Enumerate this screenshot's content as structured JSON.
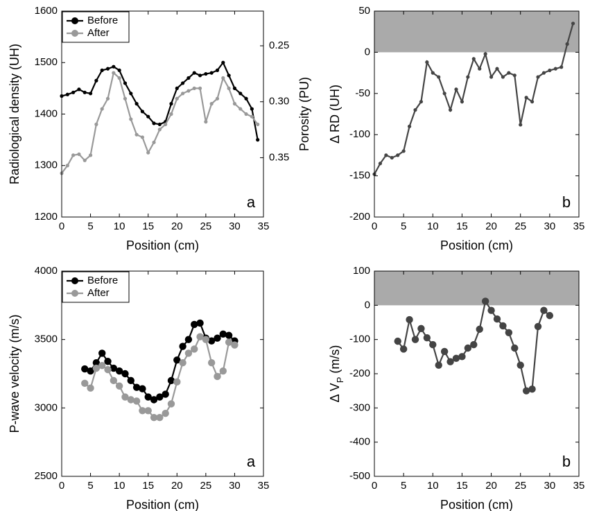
{
  "chart_data": [
    {
      "type": "line",
      "xlabel": "Position (cm)",
      "ylabel": "Radiological density (UH)",
      "y2label": "Porosity (PU)",
      "note": "a",
      "xlim": [
        0,
        35
      ],
      "xticks": [
        0,
        5,
        10,
        15,
        20,
        25,
        30,
        35
      ],
      "ylim": [
        1200,
        1600
      ],
      "yticks": [
        1200,
        1300,
        1400,
        1500,
        1600
      ],
      "y2lim": [
        0.403,
        0.219
      ],
      "y2ticks": [
        0.25,
        {
          "value": 0.3,
          "label": "0.30"
        },
        0.35
      ],
      "legend": "upper left",
      "x": [
        0,
        1,
        2,
        3,
        4,
        5,
        6,
        7,
        8,
        9,
        10,
        11,
        12,
        13,
        14,
        15,
        16,
        17,
        18,
        19,
        20,
        21,
        22,
        23,
        24,
        25,
        26,
        27,
        28,
        29,
        30,
        31,
        32,
        33,
        34
      ],
      "series": [
        {
          "name": "Before",
          "color": "#000000",
          "values": [
            1435,
            1438,
            1442,
            1448,
            1442,
            1440,
            1465,
            1485,
            1488,
            1492,
            1485,
            1460,
            1440,
            1420,
            1405,
            1395,
            1382,
            1380,
            1385,
            1420,
            1450,
            1460,
            1470,
            1480,
            1475,
            1478,
            1480,
            1485,
            1500,
            1475,
            1450,
            1440,
            1430,
            1410,
            1350
          ]
        },
        {
          "name": "After",
          "color": "#999999",
          "values": [
            1285,
            1300,
            1320,
            1322,
            1310,
            1320,
            1380,
            1410,
            1430,
            1480,
            1470,
            1430,
            1390,
            1360,
            1355,
            1325,
            1345,
            1370,
            1380,
            1400,
            1430,
            1440,
            1445,
            1450,
            1450,
            1385,
            1420,
            1430,
            1470,
            1450,
            1420,
            1410,
            1400,
            1395,
            1380
          ]
        }
      ]
    },
    {
      "type": "line",
      "xlabel": "Position (cm)",
      "ylabel": "Δ RD (UH)",
      "note": "b",
      "xlim": [
        0,
        35
      ],
      "xticks": [
        0,
        5,
        10,
        15,
        20,
        25,
        30,
        35
      ],
      "ylim": [
        -200,
        50
      ],
      "yticks": [
        -200,
        -150,
        -100,
        -50,
        0,
        50
      ],
      "shade": [
        0,
        50
      ],
      "shade_color": "#aaaaaa",
      "x": [
        0,
        1,
        2,
        3,
        4,
        5,
        6,
        7,
        8,
        9,
        10,
        11,
        12,
        13,
        14,
        15,
        16,
        17,
        18,
        19,
        20,
        21,
        22,
        23,
        24,
        25,
        26,
        27,
        28,
        29,
        30,
        31,
        32,
        33,
        34
      ],
      "series": [
        {
          "color": "#444444",
          "values": [
            -148,
            -135,
            -125,
            -128,
            -125,
            -120,
            -90,
            -70,
            -60,
            -12,
            -25,
            -30,
            -50,
            -70,
            -45,
            -60,
            -30,
            -8,
            -20,
            -2,
            -30,
            -20,
            -30,
            -25,
            -28,
            -88,
            -55,
            -60,
            -30,
            -25,
            -22,
            -20,
            -18,
            10,
            35
          ]
        }
      ]
    },
    {
      "type": "line",
      "xlabel": "Position (cm)",
      "ylabel": "P-wave velocity (m/s)",
      "note": "a",
      "xlim": [
        0,
        35
      ],
      "xticks": [
        0,
        5,
        10,
        15,
        20,
        25,
        30,
        35
      ],
      "ylim": [
        2500,
        4000
      ],
      "yticks": [
        2500,
        3000,
        3500,
        4000
      ],
      "legend": "upper left",
      "x": [
        4,
        5,
        6,
        7,
        8,
        9,
        10,
        11,
        12,
        13,
        14,
        15,
        16,
        17,
        18,
        19,
        20,
        21,
        22,
        23,
        24,
        25,
        26,
        27,
        28,
        29,
        30
      ],
      "series": [
        {
          "name": "Before",
          "color": "#000000",
          "values": [
            3285,
            3270,
            3330,
            3400,
            3340,
            3290,
            3270,
            3250,
            3200,
            3150,
            3140,
            3080,
            3060,
            3080,
            3100,
            3200,
            3350,
            3450,
            3500,
            3610,
            3620,
            3510,
            3490,
            3510,
            3540,
            3530,
            3490
          ]
        },
        {
          "name": "After",
          "color": "#999999",
          "values": [
            3180,
            3145,
            3290,
            3310,
            3280,
            3200,
            3160,
            3080,
            3060,
            3050,
            2980,
            2980,
            2930,
            2930,
            2960,
            3030,
            3190,
            3330,
            3400,
            3430,
            3520,
            3500,
            3330,
            3230,
            3270,
            3480,
            3460
          ]
        }
      ]
    },
    {
      "type": "line",
      "xlabel": "Position (cm)",
      "ylabel": [
        "Δ V",
        "P",
        " (m/s)"
      ],
      "note": "b",
      "xlim": [
        0,
        35
      ],
      "xticks": [
        0,
        5,
        10,
        15,
        20,
        25,
        30,
        35
      ],
      "ylim": [
        -500,
        100
      ],
      "yticks": [
        -500,
        -400,
        -300,
        -200,
        -100,
        0,
        100
      ],
      "shade": [
        0,
        100
      ],
      "shade_color": "#aaaaaa",
      "x": [
        4,
        5,
        6,
        7,
        8,
        9,
        10,
        11,
        12,
        13,
        14,
        15,
        16,
        17,
        18,
        19,
        20,
        21,
        22,
        23,
        24,
        25,
        26,
        27,
        28,
        29,
        30
      ],
      "series": [
        {
          "color": "#444444",
          "values": [
            -105,
            -128,
            -42,
            -100,
            -68,
            -95,
            -115,
            -175,
            -135,
            -165,
            -155,
            -150,
            -125,
            -115,
            -70,
            12,
            -15,
            -40,
            -60,
            -80,
            -125,
            -175,
            -250,
            -245,
            -62,
            -15,
            -30
          ]
        }
      ]
    }
  ]
}
